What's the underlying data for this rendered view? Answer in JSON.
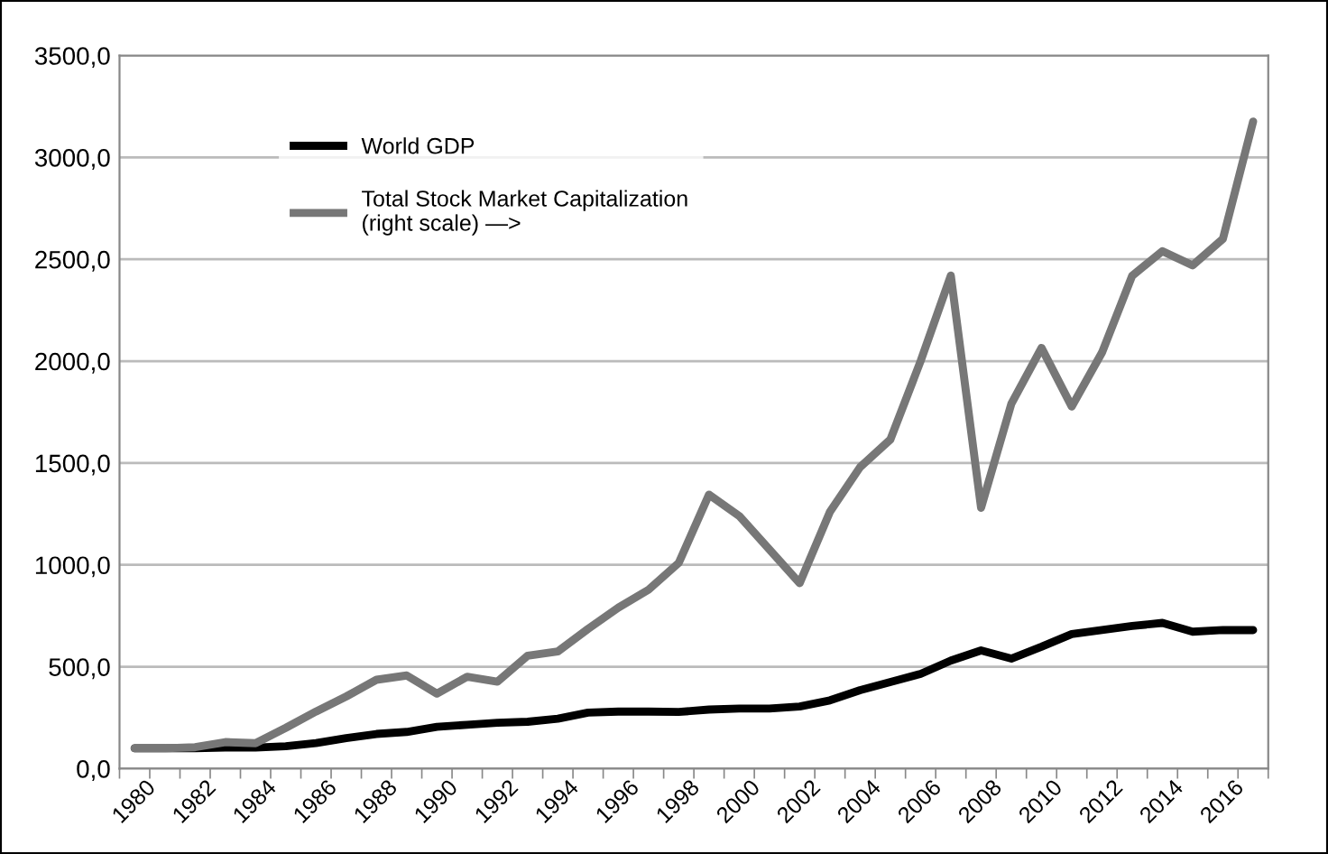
{
  "chart_data": {
    "type": "line",
    "categories": [
      "1980",
      null,
      "1982",
      null,
      "1984",
      null,
      "1986",
      null,
      "1988",
      null,
      "1990",
      null,
      "1992",
      null,
      "1994",
      null,
      "1996",
      null,
      "1998",
      null,
      "2000",
      null,
      "2002",
      null,
      "2004",
      null,
      "2006",
      null,
      "2008",
      null,
      "2010",
      null,
      "2012",
      null,
      "2014",
      null,
      "2016",
      null
    ],
    "series": [
      {
        "name": "World GDP",
        "color": "#000000",
        "values": [
          100,
          100,
          100,
          103,
          103,
          110,
          125,
          150,
          170,
          180,
          205,
          215,
          225,
          230,
          245,
          275,
          280,
          280,
          278,
          290,
          295,
          295,
          305,
          335,
          385,
          425,
          465,
          530,
          580,
          540,
          598,
          660,
          680,
          700,
          715,
          672,
          680,
          680
        ]
      },
      {
        "name": "Total Stock Market Capitalization\n(right scale) —>",
        "color": "#777777",
        "values": [
          100,
          100,
          105,
          130,
          125,
          200,
          280,
          354,
          436,
          457,
          368,
          451,
          427,
          554,
          575,
          686,
          790,
          878,
          1010,
          1345,
          1240,
          1075,
          910,
          1260,
          1480,
          1615,
          2000,
          2420,
          1280,
          1790,
          2065,
          1777,
          2042,
          2419,
          2540,
          2470,
          2600,
          3176
        ]
      }
    ],
    "ylim": [
      0,
      3500
    ],
    "yticks": [
      {
        "value": 0,
        "label": "0,0"
      },
      {
        "value": 500,
        "label": "500,0"
      },
      {
        "value": 1000,
        "label": "1000,0"
      },
      {
        "value": 1500,
        "label": "1500,0"
      },
      {
        "value": 2000,
        "label": "2000,0"
      },
      {
        "value": 2500,
        "label": "2500,0"
      },
      {
        "value": 3000,
        "label": "3000,0"
      },
      {
        "value": 3500,
        "label": "3500,0"
      }
    ],
    "grid": "y",
    "legend": "top left",
    "marker": "none",
    "line_style": "solid"
  }
}
